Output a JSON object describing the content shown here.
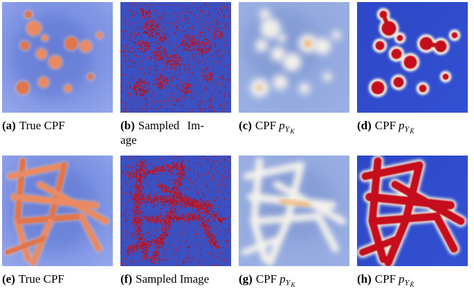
{
  "panels": [
    {
      "label": "(a)",
      "caption": "True CPF"
    },
    {
      "label": "(b)",
      "caption_lines": [
        "Sampled Im-",
        "age"
      ]
    },
    {
      "label": "(c)",
      "caption": "CPF",
      "math": {
        "base": "p",
        "sub": "Y",
        "subsub": "K"
      }
    },
    {
      "label": "(d)",
      "caption": "CPF",
      "math": {
        "base": "p",
        "sub": "Y",
        "subsub": "K̂"
      }
    },
    {
      "label": "(e)",
      "caption": "True CPF"
    },
    {
      "label": "(f)",
      "caption": "Sampled Image"
    },
    {
      "label": "(g)",
      "caption": "CPF",
      "math": {
        "base": "p",
        "sub": "Y",
        "subsub": "K"
      }
    },
    {
      "label": "(h)",
      "caption": "CPF",
      "math": {
        "base": "p",
        "sub": "Y",
        "subsub": "K̂"
      }
    }
  ],
  "colors": {
    "page_bg": "#ffffff",
    "caption": "#000000",
    "field_center": "#7087dc",
    "field_mid": "#8095e4",
    "field_edge": "#9cadee",
    "field_dip": "#5068c8",
    "blob_salmon": "#ea8a64",
    "blob_deep": "#e1764e",
    "blob_halo": "#f6b992",
    "sampled_bg": "#3b50c1",
    "speckle": "#ae1022",
    "speckle2": "#c41e2b",
    "soft_center": "#8ca4da",
    "soft_edge": "#9db1e5",
    "soft_dip": "#7289ca",
    "soft_white": "#fbf7ec",
    "soft_warm": "#efae67",
    "strong_bg": "#2c47c7",
    "strong_bg2": "#3351d3",
    "strong_red": "#c50c1b",
    "halo_cream": "#f6eedd"
  }
}
